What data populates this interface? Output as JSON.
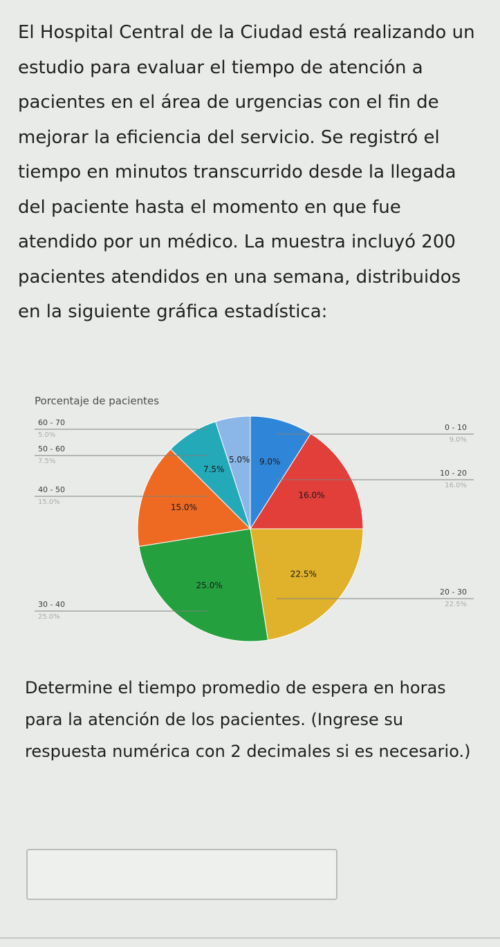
{
  "question": {
    "paragraph": "El Hospital Central de la Ciudad está realizando un estudio para evaluar el tiempo de atención a pacientes en el área de urgencias con el fin de mejorar la eficiencia del servicio. Se registró el tiempo en minutos transcurrido desde la llegada del paciente hasta el momento en que fue atendido por un médico. La muestra incluyó 200 pacientes atendidos en una semana, distribuidos en la siguiente gráfica estadística:"
  },
  "chart_data": {
    "type": "pie",
    "title": "Porcentaje de pacientes",
    "start_angle_deg": 0,
    "direction": "clockwise",
    "slices": [
      {
        "label": "0 - 10",
        "value": 9.0,
        "pct_label": "9.0%",
        "legend_pct": "9.0%",
        "color": "#2f86d8"
      },
      {
        "label": "10 - 20",
        "value": 16.0,
        "pct_label": "16.0%",
        "legend_pct": "16.0%",
        "color": "#e23e3a"
      },
      {
        "label": "20 - 30",
        "value": 22.5,
        "pct_label": "22.5%",
        "legend_pct": "22.5%",
        "color": "#e0b12a"
      },
      {
        "label": "30 - 40",
        "value": 25.0,
        "pct_label": "25.0%",
        "legend_pct": "25.0%",
        "color": "#24a03e"
      },
      {
        "label": "40 - 50",
        "value": 15.0,
        "pct_label": "15.0%",
        "legend_pct": "15.0%",
        "color": "#ee6a23"
      },
      {
        "label": "50 - 60",
        "value": 7.5,
        "pct_label": "7.5%",
        "legend_pct": "7.5%",
        "color": "#23a9b8"
      },
      {
        "label": "60 - 70",
        "value": 5.0,
        "pct_label": "5.0%",
        "legend_pct": "5.0%",
        "color": "#8bb6e8"
      }
    ]
  },
  "followup": {
    "text": "Determine el tiempo promedio de espera en horas para la atención de los pacientes. (Ingrese su respuesta numérica con 2 decimales si es necesario.)"
  },
  "answer": {
    "value": "",
    "placeholder": ""
  }
}
